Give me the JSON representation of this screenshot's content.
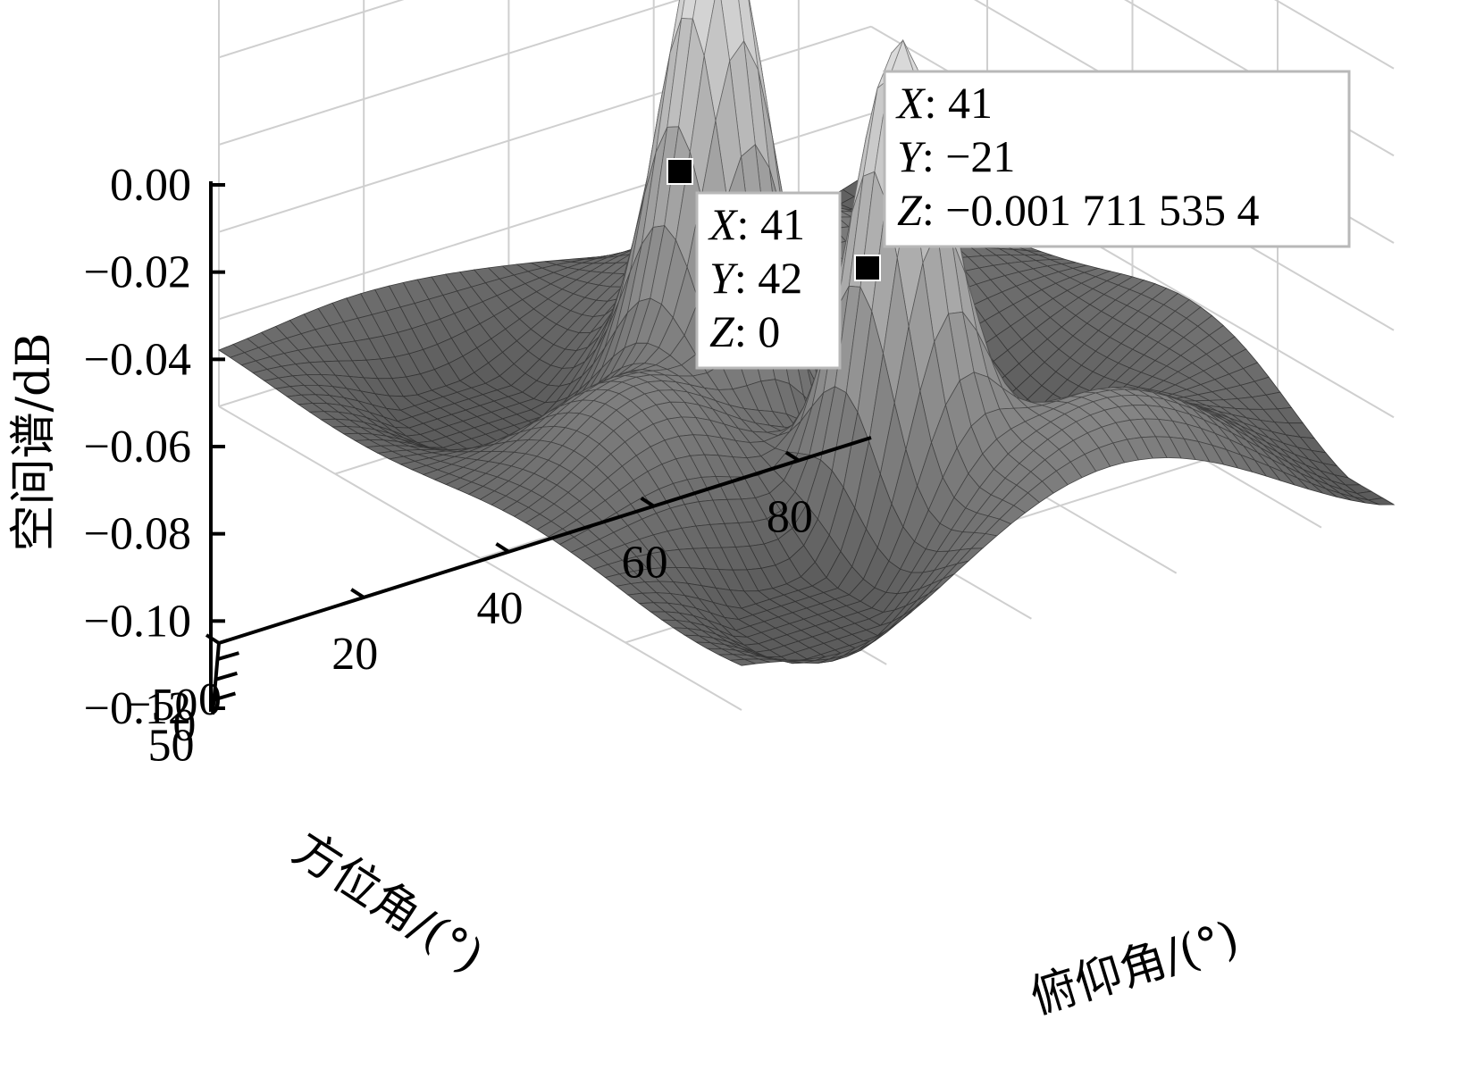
{
  "chart_data": {
    "type": "surface",
    "title": "",
    "xlabel": "方位角/(°)",
    "ylabel": "俯仰角/(°)",
    "zlabel": "空间谱/dB",
    "azimuth_range": [
      -90,
      90
    ],
    "elevation_range": [
      0,
      90
    ],
    "zlim": [
      -0.12,
      0
    ],
    "azimuth_ticks": [
      "50",
      "0",
      "−50"
    ],
    "elevation_ticks": [
      "0",
      "20",
      "40",
      "60",
      "80"
    ],
    "z_ticks": [
      "0.00",
      "−0.02",
      "−0.04",
      "−0.06",
      "−0.08",
      "−0.10",
      "−0.12"
    ],
    "grid": true,
    "colormap": "gray",
    "peaks": [
      {
        "x": 41,
        "y": 42,
        "z": 0
      },
      {
        "x": 41,
        "y": -21,
        "z": -0.0017115354
      }
    ],
    "datatips": [
      {
        "x_label": "X",
        "x_value": "41",
        "y_label": "Y",
        "y_value": "42",
        "z_label": "Z",
        "z_value": "0"
      },
      {
        "x_label": "X",
        "x_value": "41",
        "y_label": "Y",
        "y_value": "−21",
        "z_label": "Z",
        "z_value": "−0.001 711 535 4"
      }
    ]
  }
}
